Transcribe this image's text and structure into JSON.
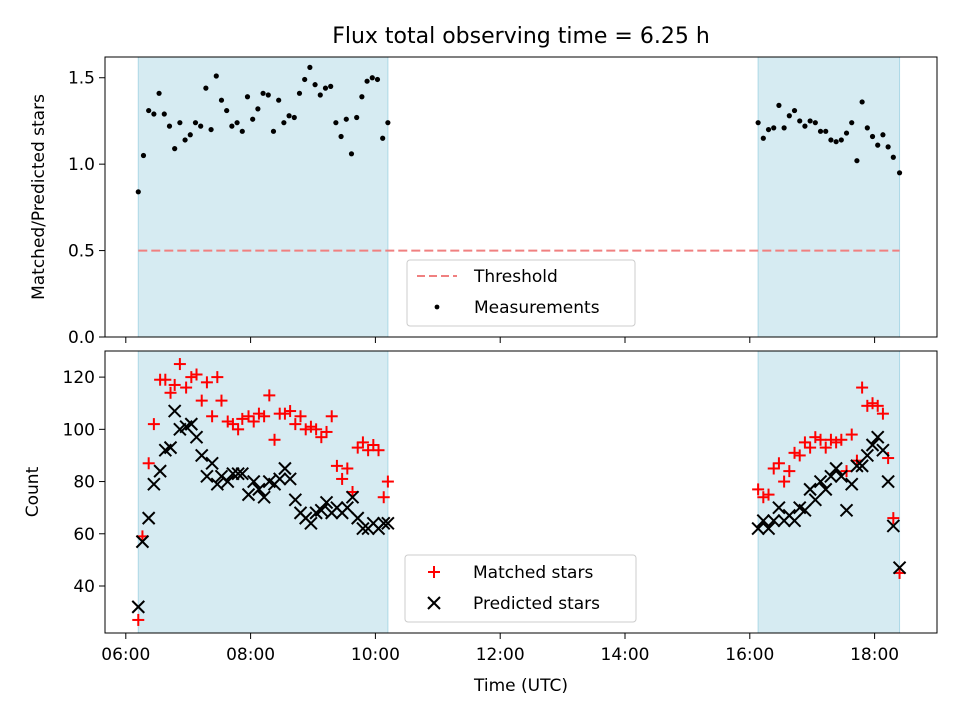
{
  "chart_data": [
    {
      "type": "scatter",
      "title": "Flux total observing time = 6.25 h",
      "ylabel": "Matched/Predicted stars",
      "xlabel": "",
      "xlim": [
        "05:40",
        "19:00"
      ],
      "ylim": [
        0,
        1.62
      ],
      "yticks": [
        "0.0",
        "0.5",
        "1.0",
        "1.5"
      ],
      "shaded_intervals": [
        [
          "06:12",
          "10:12"
        ],
        [
          "16:08",
          "18:24"
        ]
      ],
      "threshold": {
        "name": "Threshold",
        "value": 0.5,
        "x_range": [
          "06:12",
          "18:24"
        ],
        "color": "#f08080"
      },
      "legend": {
        "placement": "lower-center",
        "entries": [
          "Threshold",
          "Measurements"
        ]
      },
      "series": [
        {
          "name": "Measurements",
          "color": "#000000",
          "marker": "dot",
          "points": [
            [
              "06:12",
              0.84
            ],
            [
              "06:17",
              1.05
            ],
            [
              "06:22",
              1.31
            ],
            [
              "06:27",
              1.29
            ],
            [
              "06:32",
              1.41
            ],
            [
              "06:37",
              1.29
            ],
            [
              "06:42",
              1.22
            ],
            [
              "06:47",
              1.09
            ],
            [
              "06:52",
              1.24
            ],
            [
              "06:57",
              1.14
            ],
            [
              "07:02",
              1.17
            ],
            [
              "07:07",
              1.24
            ],
            [
              "07:12",
              1.22
            ],
            [
              "07:17",
              1.44
            ],
            [
              "07:22",
              1.2
            ],
            [
              "07:27",
              1.51
            ],
            [
              "07:32",
              1.37
            ],
            [
              "07:37",
              1.31
            ],
            [
              "07:42",
              1.22
            ],
            [
              "07:47",
              1.24
            ],
            [
              "07:52",
              1.19
            ],
            [
              "07:57",
              1.39
            ],
            [
              "08:02",
              1.26
            ],
            [
              "08:07",
              1.32
            ],
            [
              "08:12",
              1.41
            ],
            [
              "08:17",
              1.4
            ],
            [
              "08:22",
              1.19
            ],
            [
              "08:27",
              1.37
            ],
            [
              "08:32",
              1.24
            ],
            [
              "08:37",
              1.28
            ],
            [
              "08:42",
              1.27
            ],
            [
              "08:47",
              1.41
            ],
            [
              "08:52",
              1.49
            ],
            [
              "08:57",
              1.56
            ],
            [
              "09:02",
              1.46
            ],
            [
              "09:07",
              1.4
            ],
            [
              "09:12",
              1.44
            ],
            [
              "09:17",
              1.45
            ],
            [
              "09:22",
              1.24
            ],
            [
              "09:27",
              1.16
            ],
            [
              "09:32",
              1.26
            ],
            [
              "09:37",
              1.06
            ],
            [
              "09:42",
              1.27
            ],
            [
              "09:47",
              1.39
            ],
            [
              "09:52",
              1.48
            ],
            [
              "09:57",
              1.5
            ],
            [
              "10:02",
              1.49
            ],
            [
              "10:07",
              1.15
            ],
            [
              "10:12",
              1.24
            ],
            [
              "16:08",
              1.24
            ],
            [
              "16:13",
              1.15
            ],
            [
              "16:18",
              1.2
            ],
            [
              "16:23",
              1.21
            ],
            [
              "16:28",
              1.34
            ],
            [
              "16:33",
              1.21
            ],
            [
              "16:38",
              1.28
            ],
            [
              "16:43",
              1.31
            ],
            [
              "16:48",
              1.25
            ],
            [
              "16:53",
              1.22
            ],
            [
              "16:58",
              1.25
            ],
            [
              "17:03",
              1.24
            ],
            [
              "17:08",
              1.19
            ],
            [
              "17:13",
              1.19
            ],
            [
              "17:18",
              1.14
            ],
            [
              "17:23",
              1.13
            ],
            [
              "17:28",
              1.14
            ],
            [
              "17:33",
              1.18
            ],
            [
              "17:38",
              1.24
            ],
            [
              "17:43",
              1.02
            ],
            [
              "17:48",
              1.36
            ],
            [
              "17:53",
              1.21
            ],
            [
              "17:58",
              1.16
            ],
            [
              "18:03",
              1.11
            ],
            [
              "18:08",
              1.17
            ],
            [
              "18:13",
              1.1
            ],
            [
              "18:18",
              1.04
            ],
            [
              "18:24",
              0.95
            ]
          ]
        }
      ]
    },
    {
      "type": "scatter",
      "title": "",
      "ylabel": "Count",
      "xlabel": "Time (UTC)",
      "xlim": [
        "05:40",
        "19:00"
      ],
      "ylim": [
        22,
        130
      ],
      "yticks": [
        "40",
        "60",
        "80",
        "100",
        "120"
      ],
      "xticks": [
        "06:00",
        "08:00",
        "10:00",
        "12:00",
        "14:00",
        "16:00",
        "18:00"
      ],
      "shaded_intervals": [
        [
          "06:12",
          "10:12"
        ],
        [
          "16:08",
          "18:24"
        ]
      ],
      "legend": {
        "placement": "lower-center",
        "entries": [
          "Matched stars",
          "Predicted stars"
        ]
      },
      "series": [
        {
          "name": "Matched stars",
          "color": "#ff0000",
          "marker": "plus",
          "points": [
            [
              "06:12",
              27
            ],
            [
              "06:16",
              59
            ],
            [
              "06:22",
              87
            ],
            [
              "06:27",
              102
            ],
            [
              "06:33",
              119
            ],
            [
              "06:38",
              119
            ],
            [
              "06:43",
              114
            ],
            [
              "06:47",
              117
            ],
            [
              "06:52",
              125
            ],
            [
              "06:58",
              116
            ],
            [
              "07:03",
              120
            ],
            [
              "07:08",
              121
            ],
            [
              "07:13",
              111
            ],
            [
              "07:18",
              118
            ],
            [
              "07:23",
              105
            ],
            [
              "07:28",
              120
            ],
            [
              "07:32",
              111
            ],
            [
              "07:38",
              103
            ],
            [
              "07:43",
              102
            ],
            [
              "07:48",
              100
            ],
            [
              "07:52",
              104
            ],
            [
              "07:58",
              105
            ],
            [
              "08:03",
              103
            ],
            [
              "08:08",
              106
            ],
            [
              "08:13",
              105
            ],
            [
              "08:18",
              113
            ],
            [
              "08:23",
              96
            ],
            [
              "08:28",
              106
            ],
            [
              "08:33",
              106
            ],
            [
              "08:38",
              107
            ],
            [
              "08:43",
              102
            ],
            [
              "08:48",
              105
            ],
            [
              "08:53",
              100
            ],
            [
              "08:58",
              101
            ],
            [
              "09:03",
              100
            ],
            [
              "09:08",
              97
            ],
            [
              "09:13",
              99
            ],
            [
              "09:18",
              105
            ],
            [
              "09:23",
              86
            ],
            [
              "09:28",
              81
            ],
            [
              "09:33",
              85
            ],
            [
              "09:38",
              76
            ],
            [
              "09:43",
              93
            ],
            [
              "09:48",
              95
            ],
            [
              "09:53",
              92
            ],
            [
              "09:58",
              94
            ],
            [
              "10:03",
              92
            ],
            [
              "10:08",
              74
            ],
            [
              "10:12",
              80
            ],
            [
              "16:08",
              77
            ],
            [
              "16:13",
              74
            ],
            [
              "16:18",
              75
            ],
            [
              "16:23",
              85
            ],
            [
              "16:28",
              87
            ],
            [
              "16:33",
              80
            ],
            [
              "16:38",
              84
            ],
            [
              "16:43",
              91
            ],
            [
              "16:48",
              90
            ],
            [
              "16:53",
              95
            ],
            [
              "16:58",
              93
            ],
            [
              "17:03",
              97
            ],
            [
              "17:08",
              96
            ],
            [
              "17:13",
              93
            ],
            [
              "17:18",
              96
            ],
            [
              "17:23",
              95
            ],
            [
              "17:28",
              96
            ],
            [
              "17:33",
              84
            ],
            [
              "17:38",
              98
            ],
            [
              "17:43",
              88
            ],
            [
              "17:48",
              116
            ],
            [
              "17:53",
              109
            ],
            [
              "17:58",
              110
            ],
            [
              "18:03",
              109
            ],
            [
              "18:08",
              106
            ],
            [
              "18:13",
              89
            ],
            [
              "18:18",
              66
            ],
            [
              "18:24",
              45
            ]
          ]
        },
        {
          "name": "Predicted stars",
          "color": "#000000",
          "marker": "x",
          "points": [
            [
              "06:12",
              32
            ],
            [
              "06:16",
              57
            ],
            [
              "06:22",
              66
            ],
            [
              "06:27",
              79
            ],
            [
              "06:33",
              84
            ],
            [
              "06:38",
              92
            ],
            [
              "06:43",
              93
            ],
            [
              "06:47",
              107
            ],
            [
              "06:52",
              100
            ],
            [
              "06:58",
              101
            ],
            [
              "07:03",
              102
            ],
            [
              "07:08",
              97
            ],
            [
              "07:13",
              90
            ],
            [
              "07:18",
              82
            ],
            [
              "07:23",
              87
            ],
            [
              "07:28",
              79
            ],
            [
              "07:32",
              82
            ],
            [
              "07:38",
              80
            ],
            [
              "07:43",
              83
            ],
            [
              "07:48",
              83
            ],
            [
              "07:52",
              83
            ],
            [
              "07:58",
              75
            ],
            [
              "08:03",
              80
            ],
            [
              "08:08",
              77
            ],
            [
              "08:13",
              74
            ],
            [
              "08:18",
              80
            ],
            [
              "08:23",
              79
            ],
            [
              "08:28",
              81
            ],
            [
              "08:33",
              85
            ],
            [
              "08:38",
              81
            ],
            [
              "08:43",
              73
            ],
            [
              "08:48",
              68
            ],
            [
              "08:53",
              66
            ],
            [
              "08:58",
              64
            ],
            [
              "09:03",
              68
            ],
            [
              "09:08",
              69
            ],
            [
              "09:13",
              72
            ],
            [
              "09:18",
              68
            ],
            [
              "09:23",
              70
            ],
            [
              "09:28",
              68
            ],
            [
              "09:33",
              70
            ],
            [
              "09:38",
              74
            ],
            [
              "09:43",
              66
            ],
            [
              "09:48",
              62
            ],
            [
              "09:53",
              62
            ],
            [
              "09:58",
              64
            ],
            [
              "10:03",
              62
            ],
            [
              "10:08",
              64
            ],
            [
              "10:12",
              64
            ],
            [
              "16:08",
              62
            ],
            [
              "16:13",
              65
            ],
            [
              "16:18",
              62
            ],
            [
              "16:23",
              65
            ],
            [
              "16:28",
              70
            ],
            [
              "16:33",
              65
            ],
            [
              "16:38",
              67
            ],
            [
              "16:43",
              65
            ],
            [
              "16:48",
              70
            ],
            [
              "16:53",
              69
            ],
            [
              "16:58",
              77
            ],
            [
              "17:03",
              73
            ],
            [
              "17:08",
              80
            ],
            [
              "17:13",
              77
            ],
            [
              "17:18",
              82
            ],
            [
              "17:23",
              85
            ],
            [
              "17:28",
              82
            ],
            [
              "17:33",
              69
            ],
            [
              "17:38",
              79
            ],
            [
              "17:43",
              86
            ],
            [
              "17:48",
              86
            ],
            [
              "17:53",
              90
            ],
            [
              "17:58",
              94
            ],
            [
              "18:03",
              97
            ],
            [
              "18:08",
              92
            ],
            [
              "18:13",
              80
            ],
            [
              "18:18",
              63
            ],
            [
              "18:24",
              47
            ]
          ]
        }
      ]
    }
  ]
}
